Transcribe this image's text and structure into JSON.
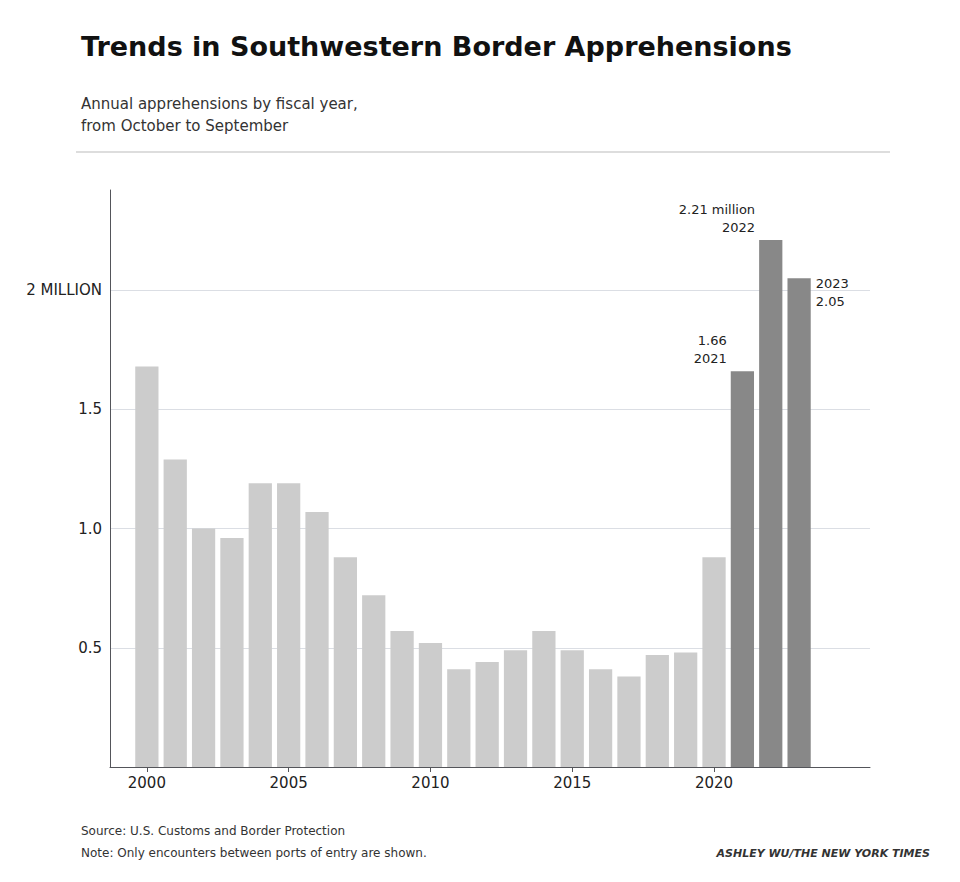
{
  "chart_data": {
    "type": "bar",
    "title": "Trends in Southwestern Border Apprehensions",
    "subtitle": [
      "Annual apprehensions by fiscal year,",
      "from October to September"
    ],
    "x": [
      2000,
      2001,
      2002,
      2003,
      2004,
      2005,
      2006,
      2007,
      2008,
      2009,
      2010,
      2011,
      2012,
      2013,
      2014,
      2015,
      2016,
      2017,
      2018,
      2019,
      2020,
      2021,
      2022,
      2023
    ],
    "values": [
      1.68,
      1.29,
      1.0,
      0.96,
      1.19,
      1.19,
      1.07,
      0.88,
      0.72,
      0.57,
      0.52,
      0.41,
      0.44,
      0.49,
      0.57,
      0.49,
      0.41,
      0.38,
      0.47,
      0.48,
      0.88,
      1.66,
      2.21,
      2.05
    ],
    "colors": [
      "#cccccc",
      "#cccccc",
      "#cccccc",
      "#cccccc",
      "#cccccc",
      "#cccccc",
      "#cccccc",
      "#cccccc",
      "#cccccc",
      "#cccccc",
      "#cccccc",
      "#cccccc",
      "#cccccc",
      "#cccccc",
      "#cccccc",
      "#cccccc",
      "#cccccc",
      "#cccccc",
      "#cccccc",
      "#cccccc",
      "#cccccc",
      "#888888",
      "#888888",
      "#888888"
    ],
    "xlim": [
      1998.7,
      2025.5
    ],
    "xticks": [
      2000,
      2005,
      2010,
      2015,
      2020
    ],
    "ylim": [
      0,
      2.42
    ],
    "yticks": [
      0.5,
      {
        "value": 1.0,
        "label": "1.0"
      },
      1.5,
      {
        "value": 2.0,
        "label": "2 MILLION"
      }
    ],
    "grid": true,
    "annotations": [
      {
        "x": 2021,
        "y": 1.66,
        "text": [
          "1.66",
          "2021"
        ]
      },
      {
        "x": 2022,
        "y": 2.21,
        "text": [
          "2.21 million",
          "2022"
        ]
      },
      {
        "x": 2023,
        "y": 2.05,
        "text": [
          "2023",
          "2.05"
        ]
      }
    ],
    "source": "Source: U.S. Customs and Border Protection",
    "note": "Note: Only encounters between ports of entry are shown.",
    "credit": "ASHLEY WU/THE NEW YORK TIMES"
  }
}
